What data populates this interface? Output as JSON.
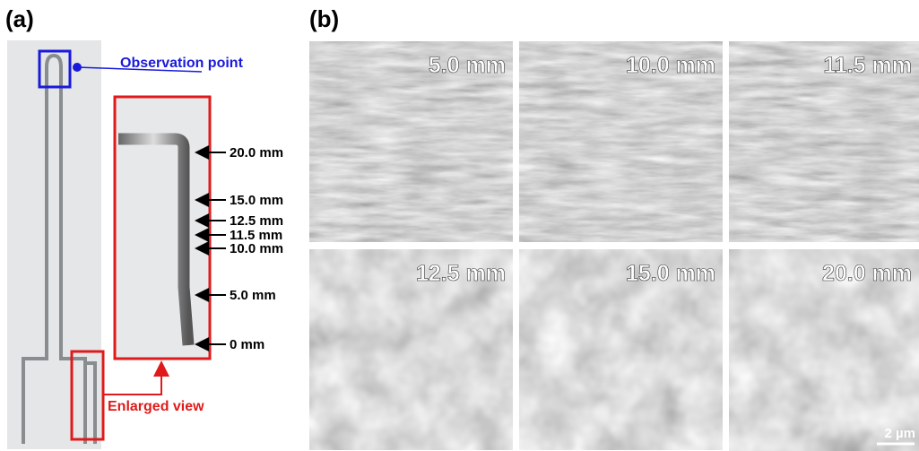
{
  "panel_a": {
    "label": "(a)",
    "observation_label": "Observation point",
    "enlarged_label": "Enlarged view",
    "positions": [
      "20.0 mm",
      "15.0 mm",
      "12.5 mm",
      "11.5 mm",
      "10.0 mm",
      "5.0 mm",
      "0 mm"
    ]
  },
  "panel_b": {
    "label": "(b)",
    "images": [
      {
        "label": "5.0 mm"
      },
      {
        "label": "10.0 mm"
      },
      {
        "label": "11.5 mm"
      },
      {
        "label": "12.5 mm"
      },
      {
        "label": "15.0 mm"
      },
      {
        "label": "20.0 mm"
      }
    ],
    "scale_bar": "2 µm"
  }
}
